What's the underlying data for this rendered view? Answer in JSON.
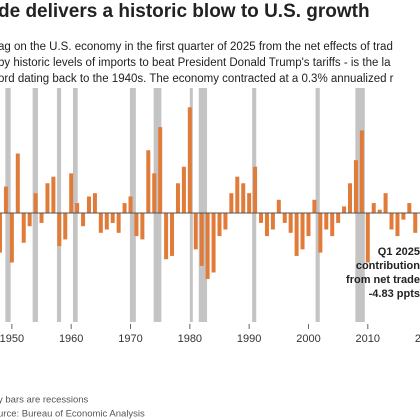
{
  "chart_data": {
    "type": "bar",
    "title": "de delivers a historic blow to U.S. growth",
    "subtitle": [
      "ag on the U.S. economy in the first quarter of 2025 from the net effects of trad",
      "by historic levels of imports to beat President Donald Trump's tariffs - is the la",
      "ord dating back to the 1940s. The economy contracted at a 0.3% annualized r"
    ],
    "annotation": [
      "Q1 2025",
      "contribution",
      "from net trade",
      "-4.83 ppts"
    ],
    "notes": [
      "y bars are recessions",
      "urce: Bureau of Economic Analysis"
    ],
    "x": [
      1948,
      1949,
      1950,
      1951,
      1952,
      1953,
      1954,
      1955,
      1956,
      1957,
      1958,
      1959,
      1960,
      1961,
      1962,
      1963,
      1964,
      1965,
      1966,
      1967,
      1968,
      1969,
      1970,
      1971,
      1972,
      1973,
      1974,
      1975,
      1976,
      1977,
      1978,
      1979,
      1980,
      1981,
      1982,
      1983,
      1984,
      1985,
      1986,
      1987,
      1988,
      1989,
      1990,
      1991,
      1992,
      1993,
      1994,
      1995,
      1996,
      1997,
      1998,
      1999,
      2000,
      2001,
      2002,
      2003,
      2004,
      2005,
      2006,
      2007,
      2008,
      2009,
      2010,
      2011,
      2012,
      2013,
      2014,
      2015,
      2016,
      2017,
      2018
    ],
    "values": [
      -1.2,
      0.8,
      -1.5,
      1.8,
      -0.9,
      -0.4,
      0.6,
      -0.3,
      0.9,
      1.1,
      -1.0,
      -0.8,
      1.2,
      0.3,
      -0.4,
      0.5,
      0.6,
      -0.6,
      -0.5,
      -0.3,
      -0.6,
      0.3,
      0.5,
      -0.7,
      -0.8,
      1.9,
      1.2,
      2.6,
      -1.4,
      -1.3,
      0.9,
      1.4,
      3.2,
      -1.1,
      -1.6,
      -2.0,
      -1.8,
      -0.7,
      -0.5,
      0.6,
      1.1,
      0.9,
      0.6,
      1.4,
      -0.3,
      -0.7,
      -0.5,
      0.4,
      -0.3,
      -0.6,
      -1.3,
      -1.1,
      -0.7,
      0.4,
      -1.2,
      -0.5,
      -0.7,
      -0.3,
      0.2,
      0.9,
      1.6,
      2.5,
      -1.5,
      0.3,
      0.1,
      0.6,
      -0.5,
      -0.7,
      -0.2,
      0.3,
      -0.6
    ],
    "color": "#e07b39",
    "recessions": [
      [
        1948.9,
        1949.8
      ],
      [
        1953.5,
        1954.4
      ],
      [
        1957.6,
        1958.3
      ],
      [
        1960.3,
        1961.1
      ],
      [
        1969.9,
        1970.9
      ],
      [
        1973.9,
        1975.2
      ],
      [
        1980.0,
        1980.5
      ],
      [
        1981.5,
        1982.9
      ],
      [
        1990.5,
        1991.2
      ],
      [
        2001.2,
        2001.9
      ],
      [
        2007.9,
        2009.5
      ]
    ],
    "recession_color": "#c4c4c4",
    "xlim": [
      1948,
      2018.8
    ],
    "xticks": [
      1950,
      1960,
      1970,
      1980,
      1990,
      2000,
      2010,
      2020
    ],
    "ylim": [
      -3.3,
      3.3
    ]
  }
}
